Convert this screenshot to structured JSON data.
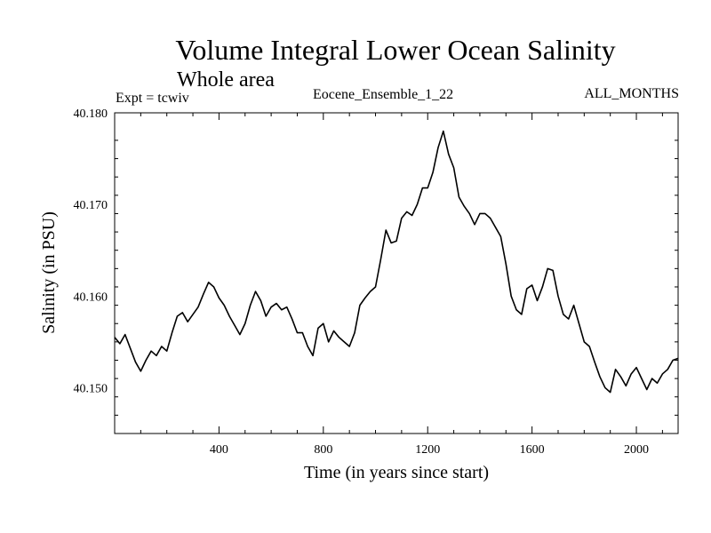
{
  "header": {
    "title": "Volume Integral Lower Ocean Salinity",
    "subtitle": "Whole area",
    "expt": "Expt = tcwiv",
    "run": "Eocene_Ensemble_1_22",
    "months": "ALL_MONTHS"
  },
  "chart_data": {
    "type": "line",
    "title": "Volume Integral Lower Ocean Salinity",
    "subtitle": "Whole area",
    "xlabel": "Time (in years since start)",
    "ylabel": "Salinity (in PSU)",
    "xlim": [
      0,
      2160
    ],
    "ylim": [
      40.145,
      40.18
    ],
    "xticks": [
      400,
      800,
      1200,
      1600,
      2000
    ],
    "yticks": [
      40.15,
      40.16,
      40.17,
      40.18
    ],
    "x_tick_labels": [
      "400",
      "800",
      "1200",
      "1600",
      "2000"
    ],
    "y_tick_labels": [
      "40.150",
      "40.160",
      "40.170",
      "40.180"
    ],
    "grid": false,
    "line_color": "#000000",
    "series": [
      {
        "x": [
          0,
          20,
          40,
          60,
          80,
          100,
          120,
          140,
          160,
          180,
          200,
          220,
          240,
          260,
          280,
          300,
          320,
          340,
          360,
          380,
          400,
          420,
          440,
          460,
          480,
          500,
          520,
          540,
          560,
          580,
          600,
          620,
          640,
          660,
          680,
          700,
          720,
          740,
          760,
          780,
          800,
          820,
          840,
          860,
          880,
          900,
          920,
          940,
          960,
          980,
          1000,
          1020,
          1040,
          1060,
          1080,
          1100,
          1120,
          1140,
          1160,
          1180,
          1200,
          1220,
          1240,
          1260,
          1280,
          1300,
          1320,
          1340,
          1360,
          1380,
          1400,
          1420,
          1440,
          1460,
          1480,
          1500,
          1520,
          1540,
          1560,
          1580,
          1600,
          1620,
          1640,
          1660,
          1680,
          1700,
          1720,
          1740,
          1760,
          1780,
          1800,
          1820,
          1840,
          1860,
          1880,
          1900,
          1920,
          1940,
          1960,
          1980,
          2000,
          2020,
          2040,
          2060,
          2080,
          2100,
          2120,
          2140,
          2160
        ],
        "values": [
          40.1555,
          40.1548,
          40.1558,
          40.1543,
          40.1528,
          40.1518,
          40.153,
          40.154,
          40.1535,
          40.1545,
          40.154,
          40.156,
          40.1578,
          40.1582,
          40.1572,
          40.158,
          40.1588,
          40.1602,
          40.1615,
          40.161,
          40.1598,
          40.159,
          40.1578,
          40.1568,
          40.1558,
          40.157,
          40.159,
          40.1605,
          40.1595,
          40.1578,
          40.1588,
          40.1592,
          40.1585,
          40.1588,
          40.1575,
          40.156,
          40.156,
          40.1545,
          40.1535,
          40.1565,
          40.157,
          40.155,
          40.1562,
          40.1555,
          40.155,
          40.1545,
          40.156,
          40.159,
          40.1598,
          40.1605,
          40.161,
          40.164,
          40.1672,
          40.1658,
          40.166,
          40.1685,
          40.1692,
          40.1688,
          40.17,
          40.1718,
          40.1718,
          40.1735,
          40.1762,
          40.178,
          40.1755,
          40.174,
          40.1708,
          40.1698,
          40.169,
          40.1678,
          40.169,
          40.169,
          40.1685,
          40.1675,
          40.1665,
          40.1635,
          40.16,
          40.1585,
          40.158,
          40.1608,
          40.1612,
          40.1595,
          40.161,
          40.163,
          40.1628,
          40.16,
          40.158,
          40.1575,
          40.159,
          40.157,
          40.155,
          40.1545,
          40.1528,
          40.1512,
          40.15,
          40.1495,
          40.152,
          40.1512,
          40.1502,
          40.1515,
          40.1522,
          40.151,
          40.1498,
          40.151,
          40.1505,
          40.1515,
          40.152,
          40.153,
          40.1532
        ]
      }
    ]
  }
}
